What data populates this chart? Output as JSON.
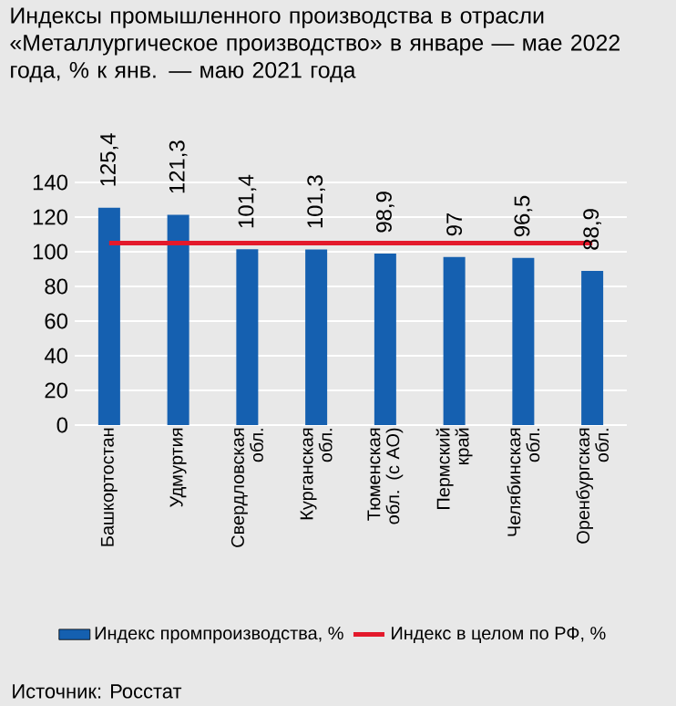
{
  "chart_data": {
    "type": "bar",
    "title": "Индексы промышленного производства в отрасли «Металлургическое производство» в январе — мае 2022 года, % к янв. — маю 2021 года",
    "categories": [
      "Башкортостан",
      "Удмуртия",
      "Свердловская обл.",
      "Курганская обл.",
      "Тюменская обл. (с АО)",
      "Пермский край",
      "Челябинская обл.",
      "Оренбургская обл."
    ],
    "series": [
      {
        "name": "Индекс промпроизводства, %",
        "color": "#1560b0",
        "values": [
          125.4,
          121.3,
          101.4,
          101.3,
          98.9,
          97,
          96.5,
          88.9
        ],
        "value_labels": [
          "125,4",
          "121,3",
          "101,4",
          "101,3",
          "98,9",
          "97",
          "96,5",
          "88,9"
        ]
      },
      {
        "name": "Индекс в целом по РФ, %",
        "type": "line",
        "color": "#e3192b",
        "values": [
          105,
          105,
          105,
          105,
          105,
          105,
          105,
          105
        ]
      }
    ],
    "ylim": [
      0,
      140
    ],
    "yticks": [
      0,
      20,
      40,
      60,
      80,
      100,
      120,
      140
    ],
    "grid": "y",
    "legend": "bottom",
    "annotations": [
      "Источник: Росстат"
    ]
  }
}
